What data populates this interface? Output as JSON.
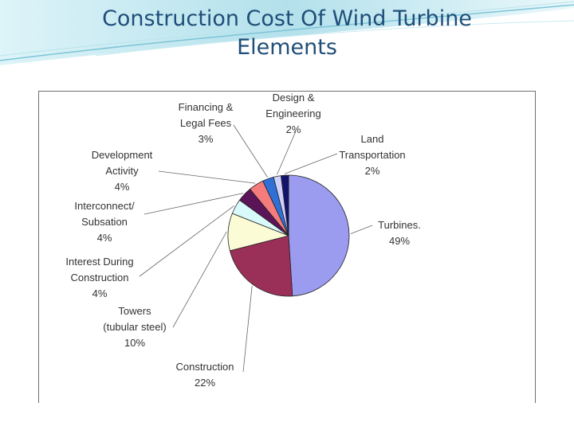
{
  "slide": {
    "title_line1": "Construction Cost Of Wind Turbine",
    "title_line2": "Elements"
  },
  "chart_data": {
    "type": "pie",
    "title": "",
    "slices": [
      {
        "label": "Turbines",
        "value": 49,
        "value_text": "49%",
        "color": "#9b9bf0"
      },
      {
        "label": "Construction",
        "value": 22,
        "value_text": "22%",
        "color": "#9a3057"
      },
      {
        "label": "Towers (tubular steel)",
        "value": 10,
        "value_text": "10%",
        "color": "#fbfbd6"
      },
      {
        "label": "Interest During Construction",
        "value": 4,
        "value_text": "4%",
        "color": "#d9fafa"
      },
      {
        "label": "Interconnect/ Subsation",
        "value": 4,
        "value_text": "4%",
        "color": "#5b1458"
      },
      {
        "label": "Development Activity",
        "value": 4,
        "value_text": "4%",
        "color": "#f47c7c"
      },
      {
        "label": "Financing & Legal Fees",
        "value": 3,
        "value_text": "3%",
        "color": "#2f70d6"
      },
      {
        "label": "Design & Engineering",
        "value": 2,
        "value_text": "2%",
        "color": "#cfd0fb"
      },
      {
        "label": "Land Transportation",
        "value": 2,
        "value_text": "2%",
        "color": "#13136b"
      }
    ],
    "label_lines": [
      [
        "Turbines.",
        "49%"
      ],
      [
        "Construction",
        "22%"
      ],
      [
        "Towers",
        "(tubular steel)",
        "10%"
      ],
      [
        "Interest During",
        "Construction",
        "4%"
      ],
      [
        "Interconnect/",
        "Subsation",
        "4%"
      ],
      [
        "Development",
        "Activity",
        "4%"
      ],
      [
        "Financing &",
        "Legal Fees",
        "3%"
      ],
      [
        "Design &",
        "Engineering",
        "2%"
      ],
      [
        "Land",
        "Transportation",
        "2%"
      ]
    ],
    "start_angle_deg": 0,
    "direction": "clockwise",
    "legend": "none"
  }
}
